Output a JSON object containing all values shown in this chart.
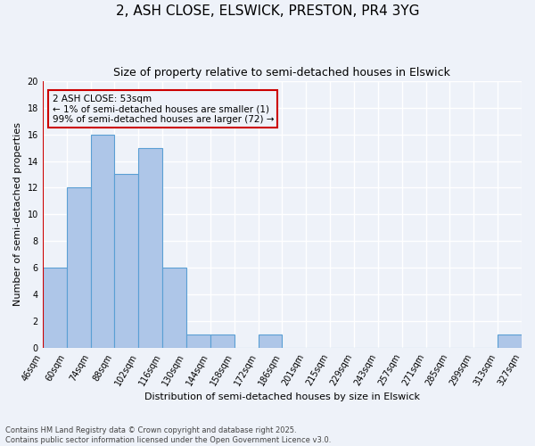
{
  "title": "2, ASH CLOSE, ELSWICK, PRESTON, PR4 3YG",
  "subtitle": "Size of property relative to semi-detached houses in Elswick",
  "xlabel": "Distribution of semi-detached houses by size in Elswick",
  "ylabel": "Number of semi-detached properties",
  "bin_labels": [
    "46sqm",
    "60sqm",
    "74sqm",
    "88sqm",
    "102sqm",
    "116sqm",
    "130sqm",
    "144sqm",
    "158sqm",
    "172sqm",
    "186sqm",
    "201sqm",
    "215sqm",
    "229sqm",
    "243sqm",
    "257sqm",
    "271sqm",
    "285sqm",
    "299sqm",
    "313sqm",
    "327sqm"
  ],
  "bar_values": [
    6,
    12,
    16,
    13,
    15,
    6,
    1,
    1,
    0,
    1,
    0,
    0,
    0,
    0,
    0,
    0,
    0,
    0,
    0,
    1
  ],
  "bar_color": "#aec6e8",
  "bar_edgecolor": "#5a9fd4",
  "property_line_x": -0.5,
  "property_line_color": "#cc0000",
  "annotation_text": "2 ASH CLOSE: 53sqm\n← 1% of semi-detached houses are smaller (1)\n99% of semi-detached houses are larger (72) →",
  "annotation_box_color": "#cc0000",
  "ylim": [
    0,
    20
  ],
  "yticks": [
    0,
    2,
    4,
    6,
    8,
    10,
    12,
    14,
    16,
    18,
    20
  ],
  "footer_text": "Contains HM Land Registry data © Crown copyright and database right 2025.\nContains public sector information licensed under the Open Government Licence v3.0.",
  "bg_color": "#eef2f9",
  "grid_color": "#ffffff",
  "title_fontsize": 11,
  "subtitle_fontsize": 9,
  "label_fontsize": 8,
  "tick_fontsize": 7
}
